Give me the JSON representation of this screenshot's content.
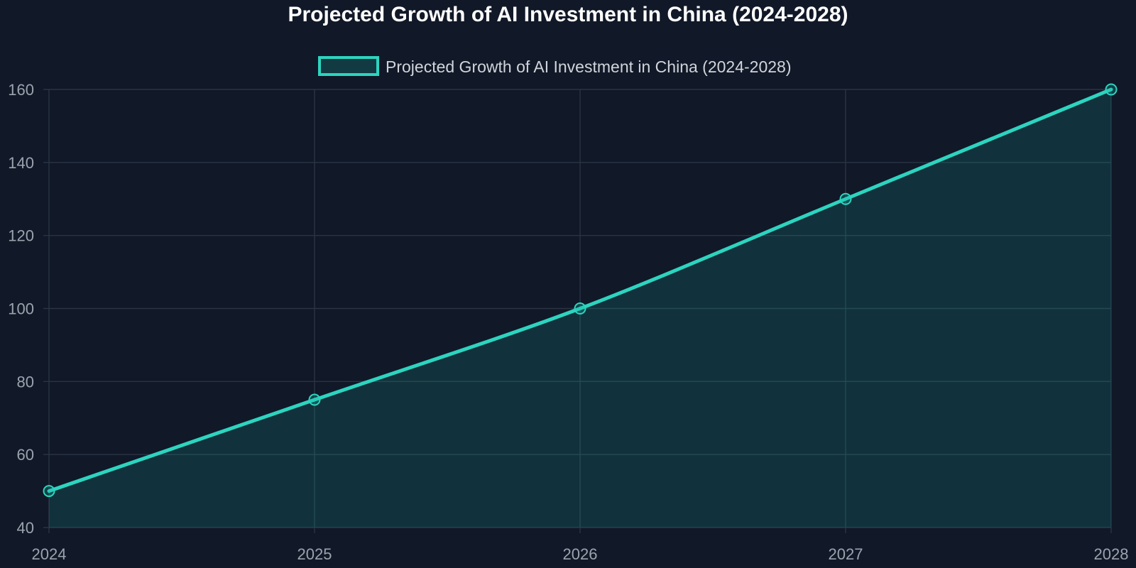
{
  "chart_data": {
    "type": "area",
    "title": "Projected Growth of AI Investment in China (2024-2028)",
    "xlabel": "",
    "ylabel": "",
    "categories": [
      "2024",
      "2025",
      "2026",
      "2027",
      "2028"
    ],
    "series": [
      {
        "name": "Projected Growth of AI Investment in China (2024-2028)",
        "values": [
          50,
          75,
          100,
          130,
          160
        ]
      }
    ],
    "ylim": [
      40,
      160
    ],
    "yticks": [
      "40",
      "60",
      "80",
      "100",
      "120",
      "140",
      "160"
    ],
    "grid": true,
    "legend_position": "top-center",
    "colors": {
      "background": "#111827",
      "line": "#2dd4bf",
      "fill": "#14b8a6",
      "grid": "#2a3444",
      "tick_text": "#9ca3af",
      "title_text": "#ffffff",
      "legend_text": "#d1d5db"
    }
  }
}
